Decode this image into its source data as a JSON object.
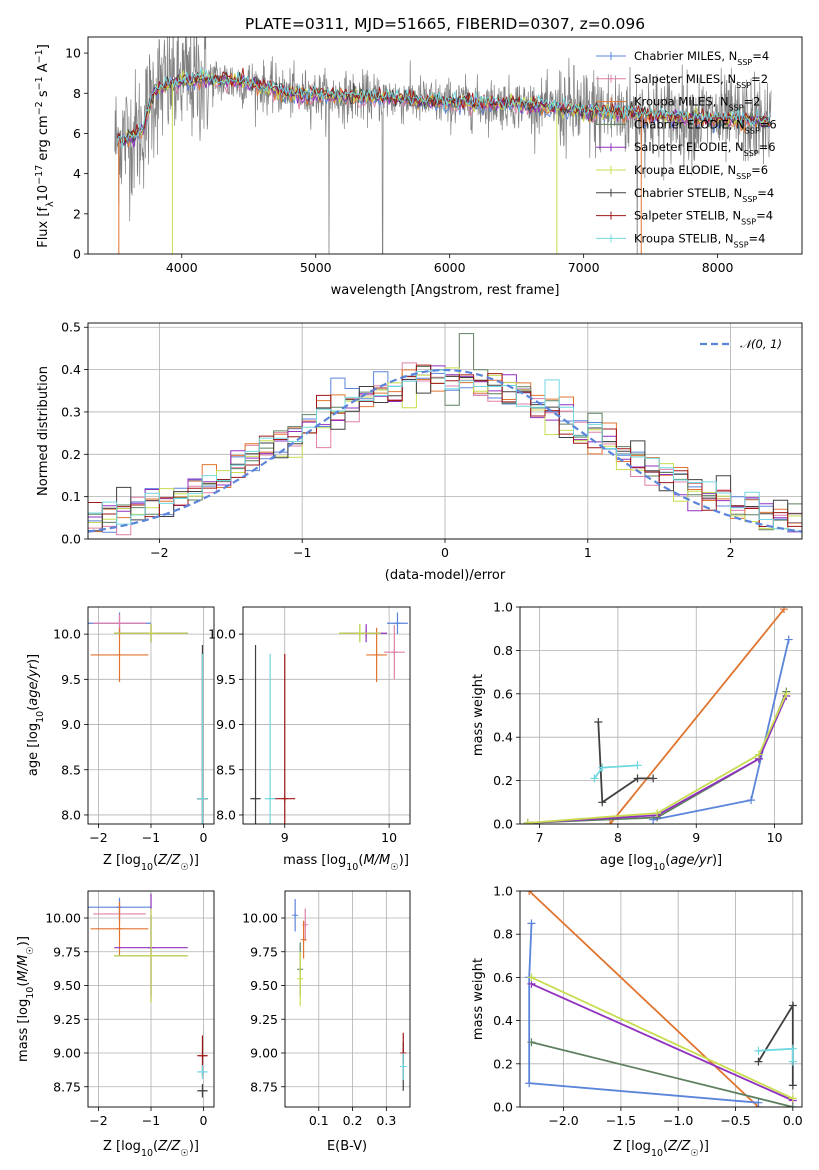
{
  "title": "PLATE=0311, MJD=51665, FIBERID=0307, z=0.096",
  "colors": {
    "Chabrier MILES": "#5b84db",
    "Salpeter MILES": "#e080a8",
    "Kroupa MILES": "#e07530",
    "Chabrier ELODIE": "#5f8060",
    "Salpeter ELODIE": "#9030c0",
    "Kroupa ELODIE": "#c8dc50",
    "Chabrier STELIB": "#404040",
    "Salpeter STELIB": "#a01818",
    "Kroupa STELIB": "#70d8e0",
    "data": "#808080"
  },
  "chart_data": [
    {
      "type": "line",
      "panel": "spectrum",
      "title": "PLATE=0311, MJD=51665, FIBERID=0307, z=0.096",
      "xlabel": "wavelength [Angstrom, rest frame]",
      "ylabel": "Flux [f_λ 10^-17 erg cm^-2 s^-1 A^-1]",
      "xlim": [
        3300,
        8630
      ],
      "ylim": [
        0,
        10.8
      ],
      "xticks": [
        4000,
        5000,
        6000,
        7000,
        8000
      ],
      "yticks": [
        0,
        2,
        4,
        6,
        8,
        10
      ],
      "legend_position": "right",
      "legend": [
        "Chabrier MILES, N_SSP=4",
        "Salpeter MILES, N_SSP=2",
        "Kroupa MILES, N_SSP=2",
        "Chabrier ELODIE, N_SSP=6",
        "Salpeter ELODIE, N_SSP=6",
        "Kroupa ELODIE, N_SSP=6",
        "Chabrier STELIB, N_SSP=4",
        "Salpeter STELIB, N_SSP=4",
        "Kroupa STELIB, N_SSP=4"
      ],
      "continuum_x": [
        3500,
        3600,
        3700,
        3800,
        3900,
        4000,
        4200,
        4500,
        4800,
        5000,
        5200,
        5500,
        6000,
        6500,
        7000,
        7500,
        8000,
        8400
      ],
      "continuum_y": [
        5.6,
        5.8,
        6.1,
        8.2,
        8.4,
        8.6,
        8.7,
        8.5,
        8.0,
        7.9,
        7.8,
        7.8,
        7.5,
        7.5,
        7.1,
        6.9,
        6.7,
        6.6
      ]
    },
    {
      "type": "line",
      "panel": "residuals",
      "xlabel": "(data-model)/error",
      "ylabel": "Normed distribution",
      "xlim": [
        -2.5,
        2.5
      ],
      "ylim": [
        0,
        0.51
      ],
      "xticks": [
        -2,
        -1,
        0,
        1,
        2
      ],
      "yticks": [
        0.0,
        0.1,
        0.2,
        0.3,
        0.4,
        0.5
      ],
      "legend": [
        "𝒩(0, 1)"
      ],
      "legend_position": "top-right",
      "grid": true
    },
    {
      "type": "scatter",
      "panel": "age-vs-Z",
      "xlabel": "Z [log10(Z/Z☉)]",
      "ylabel": "age  [log10(age/yr)]",
      "xlim": [
        -2.2,
        0.2
      ],
      "ylim": [
        7.9,
        10.3
      ],
      "xticks": [
        -2,
        -1,
        0
      ],
      "yticks": [
        8.0,
        8.5,
        9.0,
        9.5,
        10.0
      ],
      "points": [
        {
          "model": "Chabrier MILES",
          "x": -1.6,
          "y": 10.12,
          "xerr": 0.6,
          "yerr": 0.12
        },
        {
          "model": "Salpeter MILES",
          "x": -1.6,
          "y": 10.12,
          "xerr": 0.5,
          "yerr": 0.1
        },
        {
          "model": "Kroupa MILES",
          "x": -1.6,
          "y": 9.77,
          "xerr": 0.55,
          "yerr": 0.3
        },
        {
          "model": "Chabrier ELODIE",
          "x": -1.0,
          "y": 10.01,
          "xerr": 0.7,
          "yerr": 0.1
        },
        {
          "model": "Salpeter ELODIE",
          "x": -1.0,
          "y": 10.01,
          "xerr": 0.7,
          "yerr": 0.1
        },
        {
          "model": "Kroupa ELODIE",
          "x": -1.0,
          "y": 10.01,
          "xerr": 0.7,
          "yerr": 0.1
        },
        {
          "model": "Chabrier STELIB",
          "x": -0.02,
          "y": 8.18,
          "xerr": 0.1,
          "yerr": 1.7
        },
        {
          "model": "Salpeter STELIB",
          "x": -0.02,
          "y": 8.18,
          "xerr": 0.1,
          "yerr": 1.6
        },
        {
          "model": "Kroupa STELIB",
          "x": -0.02,
          "y": 8.18,
          "xerr": 0.1,
          "yerr": 1.6
        }
      ]
    },
    {
      "type": "scatter",
      "panel": "age-vs-mass",
      "xlabel": "mass [log10(M/M☉)]",
      "xlim": [
        8.6,
        10.2
      ],
      "ylim": [
        7.9,
        10.3
      ],
      "xticks": [
        9,
        10
      ],
      "yticks": [
        8.0,
        8.5,
        9.0,
        9.5,
        10.0
      ],
      "points": [
        {
          "model": "Chabrier MILES",
          "x": 10.08,
          "y": 10.12,
          "xerr": 0.1,
          "yerr": 0.12
        },
        {
          "model": "Salpeter MILES",
          "x": 10.05,
          "y": 9.8,
          "xerr": 0.1,
          "yerr": 0.3
        },
        {
          "model": "Kroupa MILES",
          "x": 9.88,
          "y": 9.77,
          "xerr": 0.1,
          "yerr": 0.3
        },
        {
          "model": "Chabrier ELODIE",
          "x": 9.72,
          "y": 10.01,
          "xerr": 0.2,
          "yerr": 0.1
        },
        {
          "model": "Salpeter ELODIE",
          "x": 9.78,
          "y": 10.01,
          "xerr": 0.2,
          "yerr": 0.1
        },
        {
          "model": "Kroupa ELODIE",
          "x": 9.72,
          "y": 10.01,
          "xerr": 0.2,
          "yerr": 0.1
        },
        {
          "model": "Chabrier STELIB",
          "x": 8.72,
          "y": 8.18,
          "xerr": 0.05,
          "yerr": 1.7
        },
        {
          "model": "Salpeter STELIB",
          "x": 9.0,
          "y": 8.18,
          "xerr": 0.1,
          "yerr": 1.6
        },
        {
          "model": "Kroupa STELIB",
          "x": 8.86,
          "y": 8.18,
          "xerr": 0.05,
          "yerr": 1.6
        }
      ]
    },
    {
      "type": "line",
      "panel": "mass-weight-vs-age",
      "xlabel": "age  [log10(age/yr)]",
      "ylabel": "mass weight",
      "xlim": [
        6.75,
        10.35
      ],
      "ylim": [
        0,
        1.0
      ],
      "xticks": [
        7,
        8,
        9,
        10
      ],
      "yticks": [
        0.0,
        0.2,
        0.4,
        0.6,
        0.8,
        1.0
      ],
      "series": [
        {
          "name": "Chabrier MILES",
          "x": [
            8.45,
            9.7,
            10.18
          ],
          "y": [
            0.02,
            0.11,
            0.85
          ]
        },
        {
          "name": "Kroupa MILES",
          "x": [
            7.9,
            10.12
          ],
          "y": [
            0.0,
            0.99
          ]
        },
        {
          "name": "Chabrier ELODIE",
          "x": [
            6.85,
            8.5,
            9.8,
            10.15
          ],
          "y": [
            0.005,
            0.03,
            0.3,
            0.61
          ]
        },
        {
          "name": "Salpeter ELODIE",
          "x": [
            6.85,
            8.5,
            9.8,
            10.15
          ],
          "y": [
            0.005,
            0.04,
            0.3,
            0.59
          ]
        },
        {
          "name": "Kroupa ELODIE",
          "x": [
            6.85,
            8.5,
            9.8,
            10.15
          ],
          "y": [
            0.005,
            0.05,
            0.32,
            0.6
          ]
        },
        {
          "name": "Chabrier STELIB",
          "x": [
            7.75,
            7.8,
            8.25,
            8.45
          ],
          "y": [
            0.47,
            0.1,
            0.21,
            0.21
          ]
        },
        {
          "name": "Kroupa STELIB",
          "x": [
            7.7,
            7.8,
            8.25
          ],
          "y": [
            0.21,
            0.26,
            0.27
          ]
        }
      ]
    },
    {
      "type": "scatter",
      "panel": "mass-vs-Z",
      "xlabel": "Z [log10(Z/Z☉)]",
      "ylabel": "mass [log10(M/M☉)]",
      "xlim": [
        -2.2,
        0.2
      ],
      "ylim": [
        8.6,
        10.2
      ],
      "xticks": [
        -2,
        -1,
        0
      ],
      "yticks": [
        8.75,
        9.0,
        9.25,
        9.5,
        9.75,
        10.0
      ],
      "points": [
        {
          "model": "Chabrier MILES",
          "x": -1.6,
          "y": 10.08,
          "xerr": 0.6,
          "yerr": 0.07
        },
        {
          "model": "Salpeter MILES",
          "x": -1.6,
          "y": 10.03,
          "xerr": 0.5,
          "yerr": 0.07
        },
        {
          "model": "Kroupa MILES",
          "x": -1.6,
          "y": 9.92,
          "xerr": 0.55,
          "yerr": 0.2
        },
        {
          "model": "Chabrier ELODIE",
          "x": -1.0,
          "y": 9.72,
          "xerr": 0.7,
          "yerr": 0.3
        },
        {
          "model": "Salpeter ELODIE",
          "x": -1.0,
          "y": 9.78,
          "xerr": 0.7,
          "yerr": 0.4
        },
        {
          "model": "Kroupa ELODIE",
          "x": -1.0,
          "y": 9.72,
          "xerr": 0.7,
          "yerr": 0.35
        },
        {
          "model": "Chabrier STELIB",
          "x": -0.02,
          "y": 8.72,
          "xerr": 0.1,
          "yerr": 0.05
        },
        {
          "model": "Salpeter STELIB",
          "x": -0.02,
          "y": 8.98,
          "xerr": 0.1,
          "yerr": 0.15
        },
        {
          "model": "Kroupa STELIB",
          "x": -0.02,
          "y": 8.86,
          "xerr": 0.1,
          "yerr": 0.05
        }
      ]
    },
    {
      "type": "scatter",
      "panel": "mass-vs-EBV",
      "xlabel": "E(B-V)",
      "xlim": [
        0.0,
        0.37
      ],
      "ylim": [
        8.6,
        10.2
      ],
      "xticks": [
        0.1,
        0.2,
        0.3
      ],
      "yticks": [
        8.75,
        9.0,
        9.25,
        9.5,
        9.75,
        10.0
      ],
      "points": [
        {
          "model": "Chabrier MILES",
          "x": 0.03,
          "y": 10.02,
          "yerr": 0.12
        },
        {
          "model": "Salpeter MILES",
          "x": 0.06,
          "y": 9.95,
          "yerr": 0.12
        },
        {
          "model": "Kroupa MILES",
          "x": 0.055,
          "y": 9.84,
          "yerr": 0.14
        },
        {
          "model": "Chabrier ELODIE",
          "x": 0.045,
          "y": 9.62,
          "yerr": 0.2
        },
        {
          "model": "Kroupa ELODIE",
          "x": 0.045,
          "y": 9.55,
          "yerr": 0.2
        },
        {
          "model": "Chabrier STELIB",
          "x": 0.35,
          "y": 8.9,
          "yerr": 0.18
        },
        {
          "model": "Salpeter STELIB",
          "x": 0.35,
          "y": 9.0,
          "yerr": 0.15
        },
        {
          "model": "Kroupa STELIB",
          "x": 0.35,
          "y": 8.9,
          "yerr": 0.1
        }
      ]
    },
    {
      "type": "line",
      "panel": "mass-weight-vs-Z",
      "xlabel": "Z [log10(Z/Z☉)]",
      "ylabel": "mass weight",
      "xlim": [
        -2.38,
        0.08
      ],
      "ylim": [
        0,
        1.0
      ],
      "xticks": [
        -2.0,
        -1.5,
        -1.0,
        -0.5,
        0.0
      ],
      "yticks": [
        0.0,
        0.2,
        0.4,
        0.6,
        0.8,
        1.0
      ],
      "series": [
        {
          "name": "Kroupa MILES",
          "x": [
            -2.3,
            -0.3
          ],
          "y": [
            1.0,
            0.0
          ]
        },
        {
          "name": "Chabrier MILES",
          "x": [
            -2.28,
            -2.3,
            -2.3,
            -0.3
          ],
          "y": [
            0.85,
            0.6,
            0.11,
            0.02
          ]
        },
        {
          "name": "Salpeter ELODIE",
          "x": [
            -2.28,
            0.0
          ],
          "y": [
            0.57,
            0.03
          ]
        },
        {
          "name": "Kroupa ELODIE",
          "x": [
            -2.28,
            0.0
          ],
          "y": [
            0.6,
            0.04
          ]
        },
        {
          "name": "Chabrier ELODIE",
          "x": [
            -2.28,
            0.0
          ],
          "y": [
            0.3,
            0.0
          ]
        },
        {
          "name": "Chabrier STELIB",
          "x": [
            -0.3,
            0.0,
            0.0
          ],
          "y": [
            0.21,
            0.47,
            0.1
          ]
        },
        {
          "name": "Kroupa STELIB",
          "x": [
            -0.3,
            0.0,
            0.0
          ],
          "y": [
            0.26,
            0.27,
            0.21
          ]
        }
      ]
    }
  ]
}
